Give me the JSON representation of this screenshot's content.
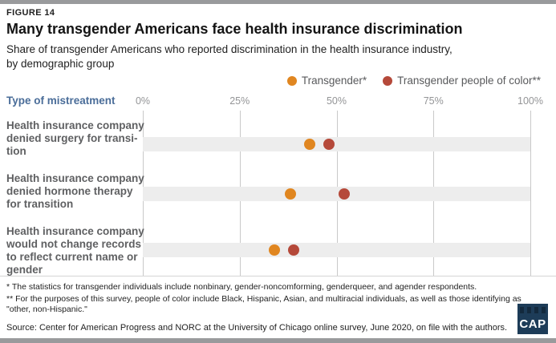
{
  "figure_label": "FIGURE 14",
  "title": "Many transgender Americans face health insurance discrimination",
  "subtitle": "Share of transgender Americans who reported discrimination in the health insurance industry,\nby demographic group",
  "legend": [
    {
      "label": "Transgender*",
      "color": "#e08620"
    },
    {
      "label": "Transgender people of color**",
      "color": "#b5493a"
    }
  ],
  "axis": {
    "row_header": "Type of mistreatment",
    "x_ticks": [
      "0%",
      "25%",
      "50%",
      "75%",
      "100%"
    ]
  },
  "chart_data": {
    "type": "scatter",
    "subtype": "horizontal-dot-plot",
    "title": "Many transgender Americans face health insurance discrimination",
    "subtitle": "Share of transgender Americans who reported discrimination in the health insurance industry, by demographic group",
    "xlabel": "",
    "ylabel": "Type of mistreatment",
    "xlim": [
      0,
      100
    ],
    "x_tick_labels": [
      "0%",
      "25%",
      "50%",
      "75%",
      "100%"
    ],
    "gridlines": true,
    "legend_position": "top-right",
    "row_band_color": "#ededed",
    "categories": [
      "Health insurance company denied surgery for transition",
      "Health insurance company denied hormone therapy for transition",
      "Health insurance company would not change records to reflect current name or gender"
    ],
    "category_display_lines": [
      "Health insurance company\ndenied surgery for transi-\ntion",
      "Health insurance company\ndenied hormone therapy\nfor transition",
      "Health insurance company\nwould not change records\nto reflect current name or\ngender"
    ],
    "series": [
      {
        "name": "Transgender*",
        "color": "#e08620",
        "values": [
          43,
          38,
          34
        ]
      },
      {
        "name": "Transgender people of color**",
        "color": "#b5493a",
        "values": [
          48,
          52,
          39
        ]
      }
    ]
  },
  "footnotes": [
    "* The statistics for transgender individuals include nonbinary, gender-noncomforming, genderqueer, and agender respondents.",
    "** For the purposes of this survey, people of color include Black, Hispanic, Asian, and multiracial individuals, as well as those identifying as \"other, non-Hispanic.\""
  ],
  "source": "Source: Center for American Progress and NORC at the University of Chicago online survey, June 2020, on file with the authors.",
  "logo_text": "CAP",
  "colors": {
    "header_blue": "#4a6d99",
    "label_gray": "#5f6062",
    "tick_gray": "#949597",
    "border_gray": "#999a9c",
    "logo_navy": "#1d3c58",
    "band_gray": "#ededed"
  }
}
